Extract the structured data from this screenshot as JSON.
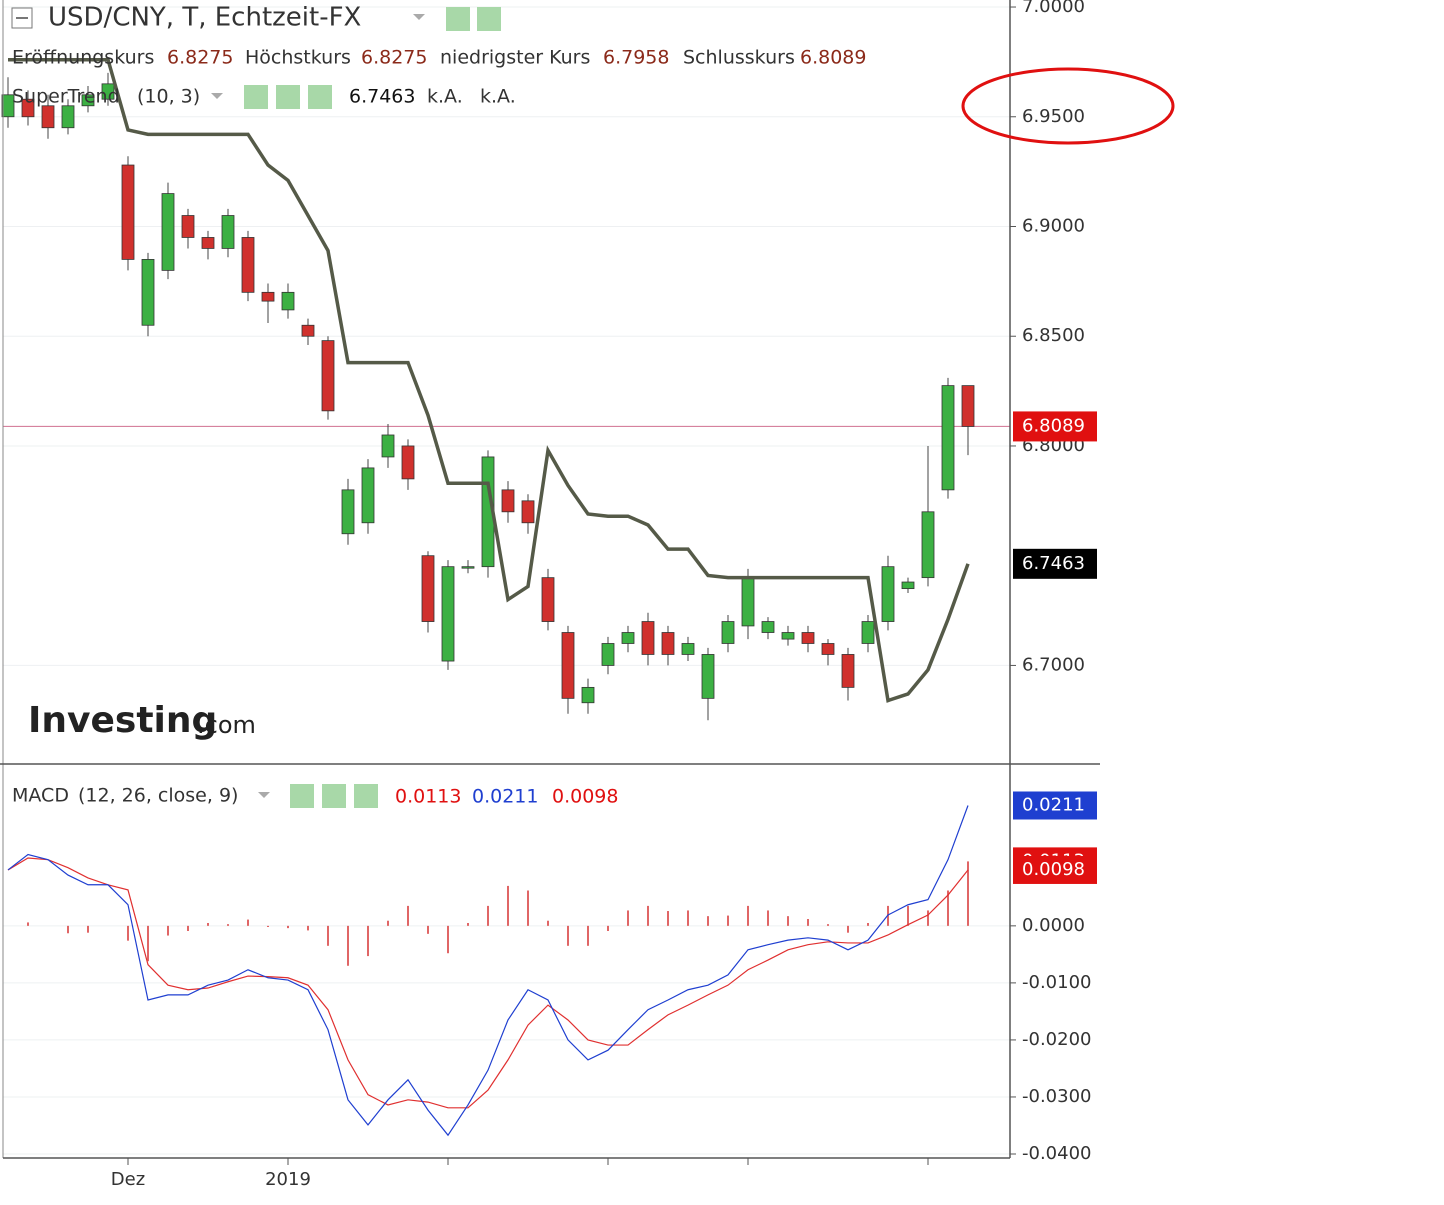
{
  "chart_data": [
    {
      "type": "candlestick",
      "title": "USD/CNY, T, Echtzeit-FX",
      "ohlc_labels": [
        "Eröffnungskurs",
        "Höchstkurs",
        "niedrigster Kurs",
        "Schlusskurs"
      ],
      "open": [
        6.95,
        6.958,
        6.955,
        6.945,
        6.955,
        6.958,
        6.928,
        6.855,
        6.88,
        6.905,
        6.895,
        6.89,
        6.895,
        6.87,
        6.862,
        6.855,
        6.848,
        6.76,
        6.765,
        6.795,
        6.8,
        6.75,
        6.702,
        6.745,
        6.745,
        6.78,
        6.775,
        6.74,
        6.715,
        6.683,
        6.7,
        6.71,
        6.72,
        6.715,
        6.705,
        6.685,
        6.71,
        6.718,
        6.715,
        6.712,
        6.715,
        6.71,
        6.705,
        6.71,
        6.72,
        6.735,
        6.74,
        6.78,
        6.8275
      ],
      "high": [
        6.968,
        6.962,
        6.96,
        6.958,
        6.964,
        6.97,
        6.932,
        6.888,
        6.92,
        6.908,
        6.898,
        6.908,
        6.898,
        6.874,
        6.874,
        6.858,
        6.85,
        6.785,
        6.794,
        6.81,
        6.803,
        6.752,
        6.748,
        6.748,
        6.798,
        6.784,
        6.778,
        6.744,
        6.718,
        6.694,
        6.713,
        6.718,
        6.724,
        6.718,
        6.713,
        6.708,
        6.723,
        6.744,
        6.722,
        6.718,
        6.718,
        6.712,
        6.708,
        6.723,
        6.75,
        6.74,
        6.8,
        6.831,
        6.8275
      ],
      "low": [
        6.945,
        6.946,
        6.94,
        6.942,
        6.952,
        6.955,
        6.88,
        6.85,
        6.876,
        6.89,
        6.885,
        6.886,
        6.866,
        6.856,
        6.858,
        6.846,
        6.812,
        6.755,
        6.76,
        6.79,
        6.78,
        6.715,
        6.698,
        6.742,
        6.74,
        6.765,
        6.76,
        6.716,
        6.678,
        6.678,
        6.696,
        6.706,
        6.7,
        6.7,
        6.702,
        6.675,
        6.706,
        6.712,
        6.712,
        6.709,
        6.706,
        6.7,
        6.684,
        6.706,
        6.716,
        6.733,
        6.736,
        6.776,
        6.7958
      ],
      "close": [
        6.96,
        6.95,
        6.945,
        6.955,
        6.96,
        6.965,
        6.885,
        6.885,
        6.915,
        6.895,
        6.89,
        6.905,
        6.87,
        6.866,
        6.87,
        6.85,
        6.816,
        6.78,
        6.79,
        6.805,
        6.785,
        6.72,
        6.745,
        6.745,
        6.795,
        6.77,
        6.765,
        6.72,
        6.685,
        6.69,
        6.71,
        6.715,
        6.705,
        6.705,
        6.71,
        6.705,
        6.72,
        6.74,
        6.72,
        6.715,
        6.71,
        6.705,
        6.69,
        6.72,
        6.745,
        6.738,
        6.77,
        6.8275,
        6.8089
      ],
      "up_color": "#3cb043",
      "down_color": "#d0312d",
      "supertrend": {
        "name": "SuperTrend",
        "params": "(10, 3)",
        "extras": [
          "k.A.",
          "k.A."
        ],
        "color": "#555a48",
        "values": [
          6.976,
          6.976,
          6.976,
          6.976,
          6.976,
          6.976,
          6.944,
          6.942,
          6.942,
          6.942,
          6.942,
          6.942,
          6.942,
          6.928,
          6.921,
          6.905,
          6.889,
          6.838,
          6.838,
          6.838,
          6.838,
          6.814,
          6.783,
          6.783,
          6.783,
          6.73,
          6.736,
          6.798,
          6.782,
          6.769,
          6.768,
          6.768,
          6.764,
          6.753,
          6.753,
          6.741,
          6.74,
          6.74,
          6.74,
          6.74,
          6.74,
          6.74,
          6.74,
          6.74,
          6.684,
          6.687,
          6.698,
          6.721,
          6.7463
        ]
      },
      "ylim": [
        6.656,
        7.0032
      ],
      "yticks": [
        {
          "value": 6.7,
          "label": "6.7000"
        },
        {
          "value": 6.8,
          "label": "6.8000"
        },
        {
          "value": 6.85,
          "label": "6.8500"
        },
        {
          "value": 6.9,
          "label": "6.9000"
        },
        {
          "value": 6.95,
          "label": "6.9500"
        },
        {
          "value": 7.0,
          "label": "7.0000"
        }
      ],
      "grid": true,
      "logo": {
        "text": "Investing",
        "suffix": ".com"
      }
    },
    {
      "type": "macd",
      "name": "MACD",
      "params": "(12, 26, close, 9)",
      "histogram": {
        "color": "#e06666",
        "values": [
          0,
          0.0006,
          0,
          -0.0013,
          -0.0012,
          0,
          -0.0026,
          -0.0062,
          -0.0017,
          -0.0009,
          0.0005,
          0.0003,
          0.0011,
          -0.0002,
          -0.0004,
          -0.0008,
          -0.0035,
          -0.007,
          -0.0053,
          0.0009,
          0.0035,
          -0.0014,
          -0.0048,
          0.0005,
          0.0035,
          0.007,
          0.0062,
          0.0009,
          -0.0035,
          -0.0035,
          -0.0009,
          0.0027,
          0.0035,
          0.0026,
          0.0027,
          0.0017,
          0.0018,
          0.0035,
          0.0027,
          0.0017,
          0.0012,
          0.0003,
          -0.0012,
          0.0005,
          0.0035,
          0.0035,
          0.0027,
          0.0062,
          0.0113
        ]
      },
      "macd": {
        "color": "#1f3fd0",
        "values": [
          0.0098,
          0.0125,
          0.0116,
          0.0089,
          0.0072,
          0.0072,
          0.0037,
          -0.013,
          -0.0121,
          -0.0121,
          -0.0104,
          -0.0095,
          -0.0077,
          -0.0091,
          -0.0095,
          -0.0112,
          -0.0182,
          -0.0305,
          -0.0349,
          -0.0305,
          -0.027,
          -0.0323,
          -0.0367,
          -0.0314,
          -0.0253,
          -0.0165,
          -0.0112,
          -0.013,
          -0.02,
          -0.0235,
          -0.0218,
          -0.0182,
          -0.0147,
          -0.013,
          -0.0112,
          -0.0104,
          -0.0086,
          -0.0042,
          -0.0033,
          -0.0025,
          -0.0021,
          -0.0025,
          -0.0042,
          -0.0025,
          0.0019,
          0.0037,
          0.0046,
          0.0116,
          0.0211
        ]
      },
      "signal": {
        "color": "#e03030",
        "values": [
          0.0098,
          0.0119,
          0.0116,
          0.0102,
          0.0084,
          0.0072,
          0.0063,
          -0.0068,
          -0.0104,
          -0.0112,
          -0.0109,
          -0.0098,
          -0.0088,
          -0.0089,
          -0.0091,
          -0.0104,
          -0.0147,
          -0.0235,
          -0.0296,
          -0.0314,
          -0.0305,
          -0.0309,
          -0.0319,
          -0.0319,
          -0.0288,
          -0.0235,
          -0.0174,
          -0.0139,
          -0.0165,
          -0.02,
          -0.0209,
          -0.0209,
          -0.0182,
          -0.0156,
          -0.0139,
          -0.0121,
          -0.0104,
          -0.0077,
          -0.006,
          -0.0042,
          -0.0033,
          -0.0028,
          -0.003,
          -0.003,
          -0.0016,
          0.0002,
          0.0019,
          0.0054,
          0.0098
        ]
      },
      "ylim": [
        -0.0407,
        0.0282
      ],
      "yticks": [
        {
          "value": 0,
          "label": "0.0000"
        },
        {
          "value": -0.01,
          "label": "-0.0100"
        },
        {
          "value": -0.02,
          "label": "-0.0200"
        },
        {
          "value": -0.03,
          "label": "-0.0300"
        },
        {
          "value": -0.04,
          "label": "-0.0400"
        }
      ],
      "xtick_positions": [
        6,
        14,
        22,
        30,
        37,
        46
      ],
      "xtick_labels": [
        "Dez",
        "2019",
        null,
        null,
        null,
        null
      ]
    }
  ]
}
